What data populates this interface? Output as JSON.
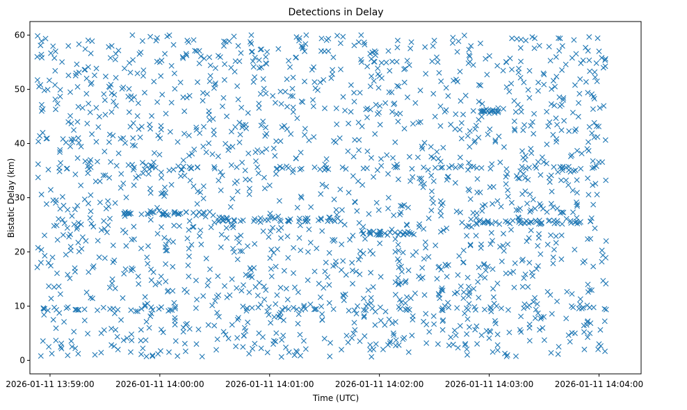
{
  "chart_data": {
    "type": "scatter",
    "title": "Detections in Delay",
    "xlabel": "Time (UTC)",
    "ylabel": "Bistatic Delay (km)",
    "marker": "x",
    "color": "#1f77b4",
    "xlim_seconds_since_start": [
      -11,
      323
    ],
    "ylim": [
      -2.5,
      62.5
    ],
    "x_ticks": [
      {
        "t": 0,
        "label": "2026-01-11 13:59:00"
      },
      {
        "t": 60,
        "label": "2026-01-11 14:00:00"
      },
      {
        "t": 120,
        "label": "2026-01-11 14:01:00"
      },
      {
        "t": 180,
        "label": "2026-01-11 14:02:00"
      },
      {
        "t": 240,
        "label": "2026-01-11 14:03:00"
      },
      {
        "t": 300,
        "label": "2026-01-11 14:04:00"
      }
    ],
    "y_ticks": [
      0,
      10,
      20,
      30,
      40,
      50,
      60
    ],
    "data_time_range_seconds": [
      -7,
      304
    ],
    "data_delay_range_km": [
      0.5,
      60
    ],
    "approx_point_count": 2000,
    "clusters": [
      {
        "delay_km": 35.5,
        "t_start": -6,
        "t_end": 304
      },
      {
        "delay_km": 9.5,
        "t_start": -6,
        "t_end": 304
      },
      {
        "delay_km": 27,
        "t_start": 40,
        "t_end": 90
      },
      {
        "delay_km": 26,
        "t_start": 90,
        "t_end": 160
      },
      {
        "delay_km": 25.5,
        "t_start": 230,
        "t_end": 300
      },
      {
        "delay_km": 23.5,
        "t_start": 170,
        "t_end": 200
      },
      {
        "delay_km": 46,
        "t_start": 235,
        "t_end": 245
      }
    ],
    "points_sample": [
      [
        -7,
        56
      ],
      [
        -5,
        0.8
      ],
      [
        -6,
        50.5
      ],
      [
        3,
        57
      ],
      [
        10,
        58
      ],
      [
        20,
        52
      ],
      [
        30,
        48
      ],
      [
        45,
        60
      ],
      [
        60,
        55
      ],
      [
        75,
        59
      ],
      [
        95,
        58
      ],
      [
        110,
        60
      ],
      [
        140,
        60
      ],
      [
        150,
        57
      ],
      [
        170,
        60
      ],
      [
        190,
        59
      ],
      [
        210,
        59
      ],
      [
        230,
        58
      ],
      [
        260,
        59
      ],
      [
        280,
        58
      ],
      [
        300,
        57
      ],
      [
        -4,
        42
      ],
      [
        5,
        35.5
      ],
      [
        15,
        44
      ],
      [
        25,
        33
      ],
      [
        40,
        41
      ],
      [
        55,
        36
      ],
      [
        70,
        27
      ],
      [
        85,
        26.5
      ],
      [
        100,
        25
      ],
      [
        115,
        25.5
      ],
      [
        125,
        24
      ],
      [
        140,
        26
      ],
      [
        155,
        22
      ],
      [
        165,
        18
      ],
      [
        175,
        23.5
      ],
      [
        185,
        30
      ],
      [
        200,
        20
      ],
      [
        215,
        24
      ],
      [
        230,
        26
      ],
      [
        245,
        46
      ],
      [
        255,
        34
      ],
      [
        265,
        28
      ],
      [
        275,
        19
      ],
      [
        285,
        10
      ],
      [
        295,
        5
      ],
      [
        300,
        3
      ],
      [
        -3,
        9.5
      ],
      [
        12,
        2.5
      ],
      [
        28,
        5
      ],
      [
        50,
        9.5
      ],
      [
        65,
        1.5
      ],
      [
        80,
        3
      ],
      [
        92,
        12
      ],
      [
        108,
        7
      ],
      [
        122,
        3
      ],
      [
        135,
        1.5
      ],
      [
        150,
        4
      ],
      [
        168,
        10
      ],
      [
        182,
        2
      ],
      [
        196,
        1.5
      ],
      [
        212,
        3
      ],
      [
        228,
        1
      ],
      [
        244,
        10
      ],
      [
        262,
        6
      ],
      [
        278,
        2.5
      ],
      [
        292,
        2
      ],
      [
        303,
        9.5
      ]
    ]
  }
}
